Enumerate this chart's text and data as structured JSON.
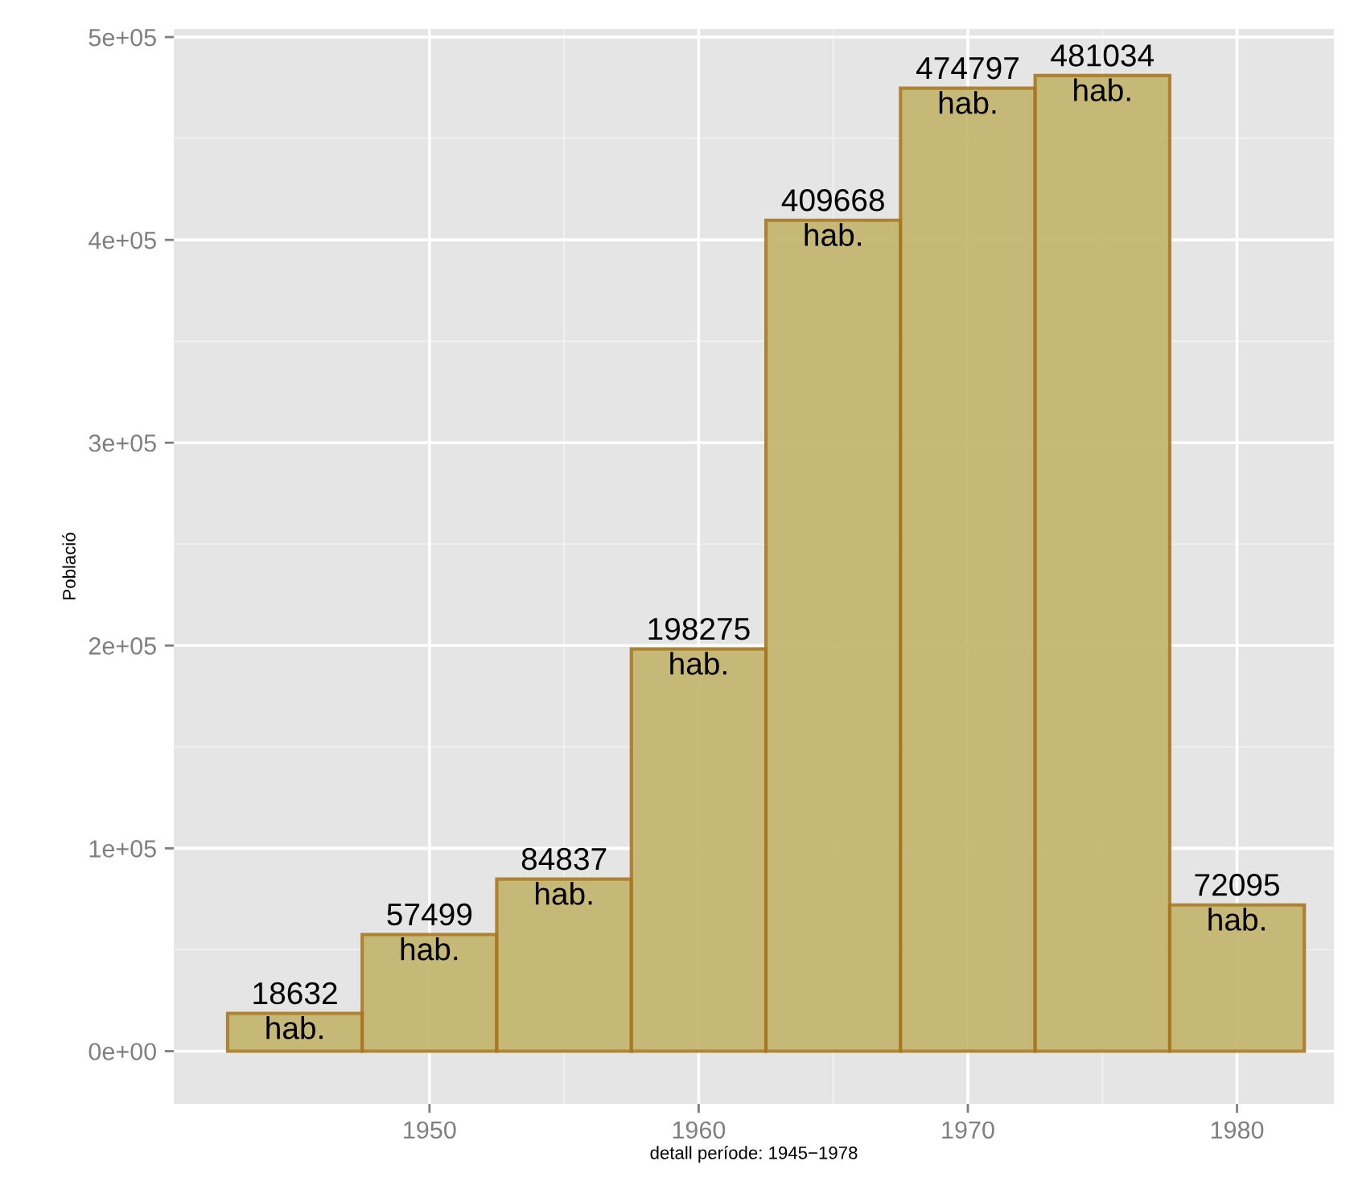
{
  "chart_data": {
    "type": "histogram",
    "xlabel": "detall període: 1945−1978",
    "ylabel": "Població",
    "bins": [
      1942.5,
      1947.5,
      1952.5,
      1957.5,
      1962.5,
      1967.5,
      1972.5,
      1977.5,
      1982.5
    ],
    "values": [
      18632,
      57499,
      84837,
      198275,
      409668,
      474797,
      481034,
      72095
    ],
    "value_labels": [
      "18632\nhab.",
      "57499\nhab.",
      "84837\nhab.",
      "198275\nhab.",
      "409668\nhab.",
      "474797\nhab.",
      "481034\nhab.",
      "72095\nhab."
    ],
    "color": "#c3b46c",
    "xlim": [
      1940.5,
      1983.6
    ],
    "xticks": [
      1950,
      1960,
      1970,
      1980
    ],
    "ylim": [
      -26000,
      504000
    ],
    "yticks": [
      {
        "value": 0,
        "label": "0e+00"
      },
      {
        "value": 100000,
        "label": "1e+05"
      },
      {
        "value": 200000,
        "label": "2e+05"
      },
      {
        "value": 300000,
        "label": "3e+05"
      },
      {
        "value": 400000,
        "label": "4e+05"
      },
      {
        "value": 500000,
        "label": "5e+05"
      }
    ],
    "grid": true,
    "legend": false
  }
}
